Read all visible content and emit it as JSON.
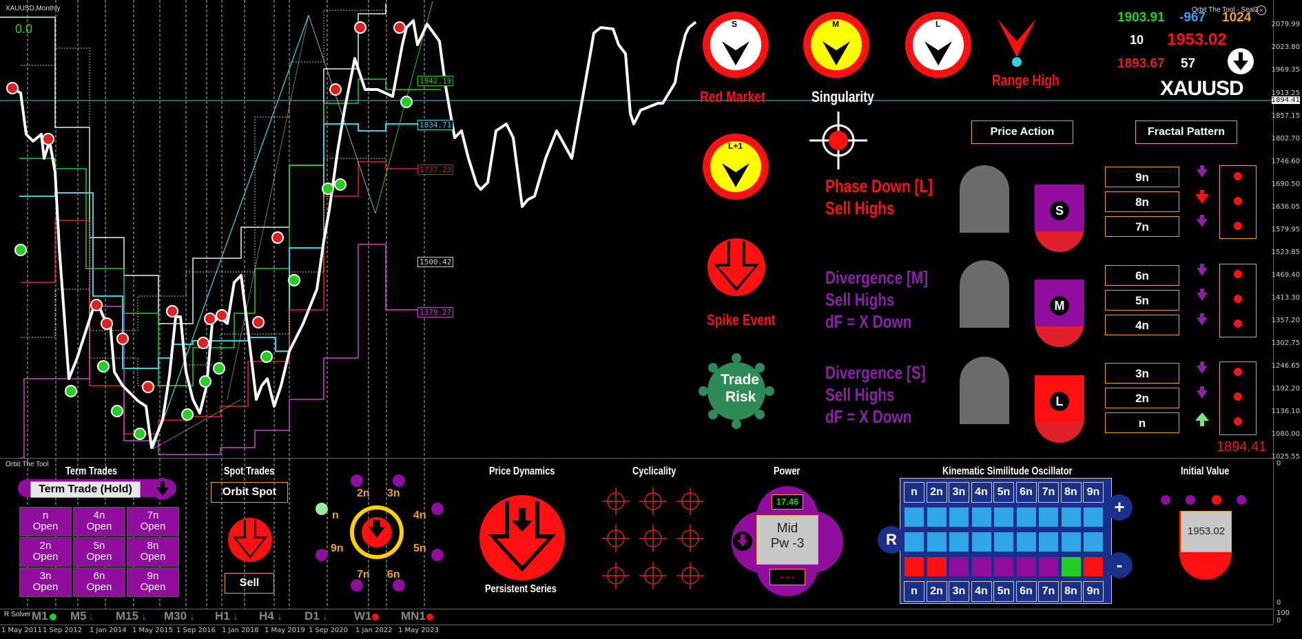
{
  "chart_header": {
    "symbol": "XAUUSD,Monthly",
    "value_readout": "0.0",
    "tool_label": "Orbit The Tool - Seal3"
  },
  "price_axis": [
    "2079.99",
    "2023.80",
    "1969.35",
    "1913.25",
    "1894.41",
    "1857.15",
    "1802.70",
    "1746.60",
    "1690.50",
    "1636.05",
    "1579.95",
    "1523.85",
    "1469.40",
    "1413.30",
    "1357.20",
    "1302.75",
    "1246.65",
    "1192.20",
    "1136.10",
    "1080.00",
    "1025.55"
  ],
  "subwindow_axis": {
    "top": "0",
    "r_top": "100",
    "r_bottom": "0"
  },
  "time_axis": [
    "1 May 2011",
    "1 Sep 2012",
    "1 Jan 2014",
    "1 May 2015",
    "1 Sep 2016",
    "1 Jan 2018",
    "1 May 2019",
    "1 Sep 2020",
    "1 Jan 2022",
    "1 May 2023"
  ],
  "level_tags": [
    {
      "text": "1942.19",
      "color": "#22d022"
    },
    {
      "text": "1834.71",
      "color": "#2ad5e8"
    },
    {
      "text": "1737.23",
      "color": "#e02020"
    },
    {
      "text": "1500.42",
      "color": "#cccccc"
    },
    {
      "text": "1379.27",
      "color": "#d040d0"
    }
  ],
  "top_right_stats": {
    "v1": "1903.91",
    "v2": "-967",
    "v3": "1024",
    "v4": "10",
    "v5": "1953.02",
    "v6": "1893.67",
    "v7": "57",
    "symbol": "XAUUSD",
    "colors": {
      "green": "#22d022",
      "blue": "#3aa0ff",
      "orange": "#f3a21b",
      "red": "#ff1010"
    }
  },
  "dials": [
    {
      "letter": "S",
      "fill": "#ffffff"
    },
    {
      "letter": "M",
      "fill": "#ffff00"
    },
    {
      "letter": "L",
      "fill": "#ffffff"
    },
    {
      "letter": "L+1",
      "fill": "#ffff00"
    }
  ],
  "labels": {
    "red_market": "Red Market",
    "singularity": "Singularity",
    "range_high": "Range High",
    "spike_event": "Spike Event",
    "trade_risk_1": "Trade",
    "trade_risk_2": "Risk",
    "price_action": "Price Action",
    "fractal_pattern": "Fractal Pattern",
    "phase_1": "Phase Down [L]",
    "phase_2": "Sell Highs",
    "div_m_1": "Divergence [M]",
    "div_m_2": "Sell Highs",
    "div_m_3": "dF = X Down",
    "div_s_1": "Divergence [S]",
    "div_s_2": "Sell Highs",
    "div_s_3": "dF = X Down",
    "bottom_price": "1894.41"
  },
  "badges": [
    "S",
    "M",
    "L"
  ],
  "n_cells": [
    "9n",
    "8n",
    "7n",
    "6n",
    "5n",
    "4n",
    "3n",
    "2n",
    "n"
  ],
  "n_arrows": [
    "down-purple",
    "down-red",
    "down-purple",
    "down-purple",
    "down-purple",
    "down-purple",
    "down-purple",
    "down-purple",
    "up-green"
  ],
  "panel": {
    "name": "Orbit The Tool",
    "term_trades": "Term Trades",
    "term_btn": "Term Trade (Hold)",
    "term_grid": [
      [
        "n",
        "Open"
      ],
      [
        "4n",
        "Open"
      ],
      [
        "7n",
        "Open"
      ],
      [
        "2n",
        "Open"
      ],
      [
        "5n",
        "Open"
      ],
      [
        "8n",
        "Open"
      ],
      [
        "3n",
        "Open"
      ],
      [
        "6n",
        "Open"
      ],
      [
        "9n",
        "Open"
      ]
    ],
    "spot_trades": "Spot Trades",
    "orbit_spot": "Orbit Spot",
    "sell": "Sell",
    "orbit_labels": {
      "n": "n",
      "2n": "2n",
      "3n": "3n",
      "4n": "4n",
      "5n": "5n",
      "6n": "6n",
      "7n": "7n",
      "9n": "9n"
    },
    "price_dynamics": "Price Dynamics",
    "persistent_series": "Persistent Series",
    "cyclicality": "Cyclicality",
    "power": "Power",
    "power_value": "17.46",
    "power_mid": "Mid",
    "power_pw": "Pw -3",
    "power_dashes": "- - -",
    "kso": "Kinematic Similitude Oscillator",
    "kso_cols": [
      "n",
      "2n",
      "3n",
      "4n",
      "5n",
      "6n",
      "7n",
      "8n",
      "9n"
    ],
    "kso_r": "R",
    "kso_plus": "+",
    "kso_minus": "-",
    "initial_value": "Initial Value",
    "initial_value_num": "1953.02"
  },
  "bottom_strip": {
    "solver": "R Solver",
    "timeframes": [
      {
        "tf": "M1",
        "mark": "dot-green"
      },
      {
        "tf": "M5",
        "mark": "arrow-red"
      },
      {
        "tf": "M15",
        "mark": "arrow-purple"
      },
      {
        "tf": "M30",
        "mark": "arrow-purple"
      },
      {
        "tf": "H1",
        "mark": "arrow-purple"
      },
      {
        "tf": "H4",
        "mark": "arrow-purple"
      },
      {
        "tf": "D1",
        "mark": "arrow-red"
      },
      {
        "tf": "W1",
        "mark": "dot-red"
      },
      {
        "tf": "MN1",
        "mark": "dot-red"
      }
    ]
  }
}
